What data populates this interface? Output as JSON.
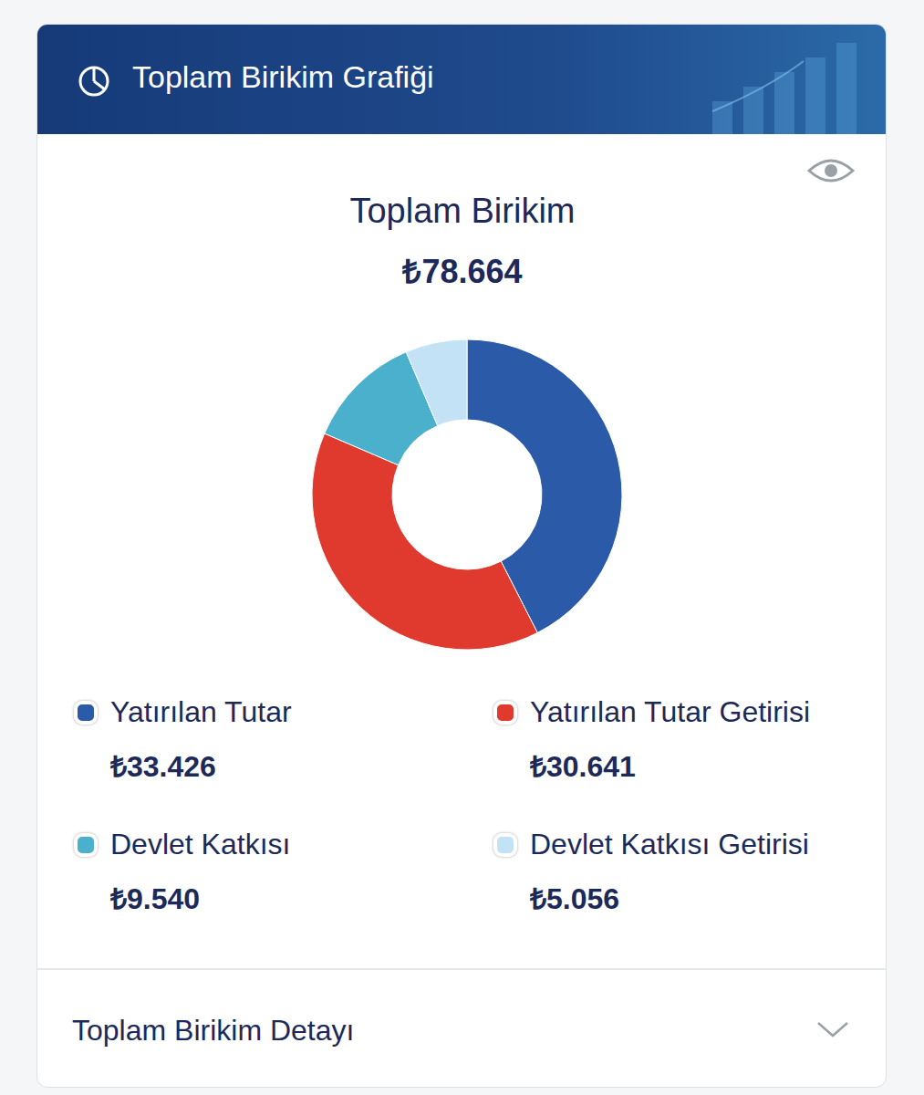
{
  "header": {
    "title": "Toplam Birikim Grafiği"
  },
  "chart_data": {
    "type": "pie",
    "title": "Toplam Birikim",
    "subtitle": "₺78.664",
    "categories": [
      "Yatırılan Tutar",
      "Yatırılan Tutar Getirisi",
      "Devlet Katkısı",
      "Devlet Katkısı Getirisi"
    ],
    "values": [
      33426,
      30641,
      9540,
      5056
    ],
    "value_labels": [
      "₺33.426",
      "₺30.641",
      "₺9.540",
      "₺5.056"
    ],
    "colors": [
      "#2a5aa8",
      "#e0392e",
      "#4ab0cc",
      "#c4e2f6"
    ],
    "legend": "bottom"
  },
  "footer": {
    "title": "Toplam Birikim Detayı"
  }
}
